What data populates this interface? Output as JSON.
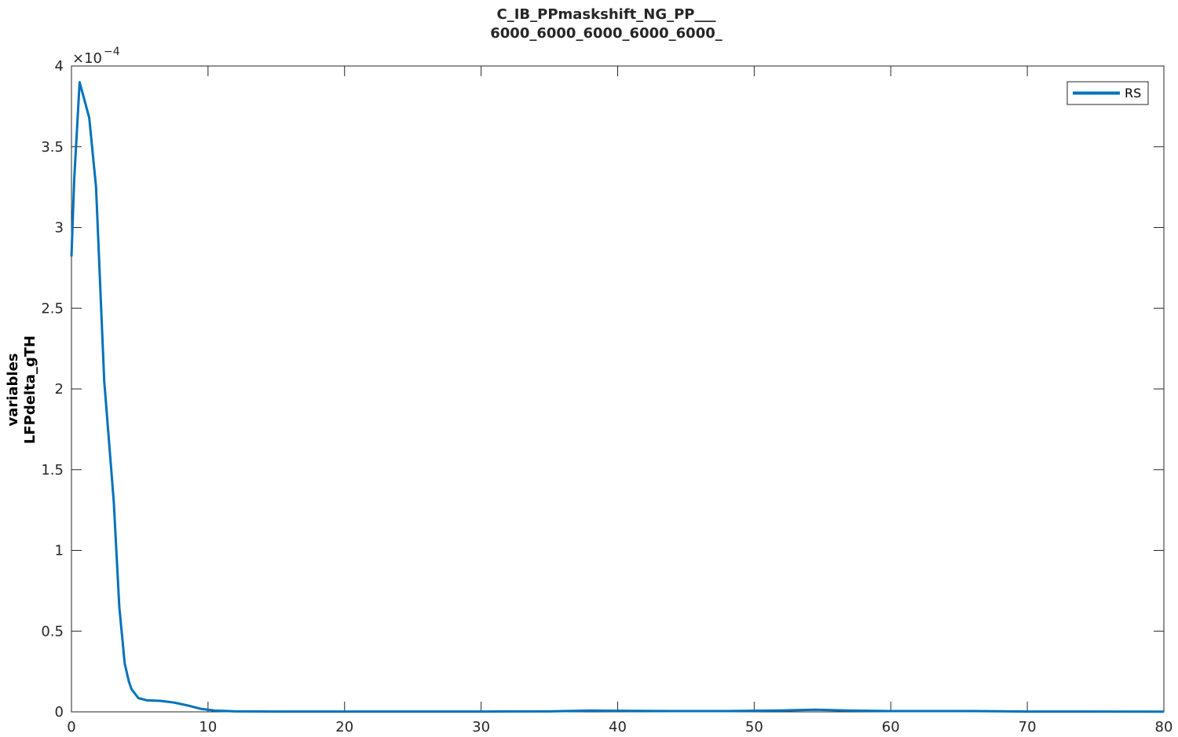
{
  "chart_data": {
    "type": "line",
    "title": [
      "C_IB_PPmaskshift_NG_PP___",
      "6000_6000_6000_6000_6000_"
    ],
    "xlabel": "",
    "ylabel": [
      "variables",
      "LFPdelta_gTH"
    ],
    "xlim": [
      0,
      80
    ],
    "ylim": [
      0,
      0.0004
    ],
    "y_exponent_label": "×10",
    "y_exponent_power": "−4",
    "x_ticks": [
      0,
      10,
      20,
      30,
      40,
      50,
      60,
      70,
      80
    ],
    "x_tick_labels": [
      "0",
      "10",
      "20",
      "30",
      "40",
      "50",
      "60",
      "70",
      "80"
    ],
    "y_ticks": [
      0,
      5e-05,
      0.0001,
      0.00015,
      0.0002,
      0.00025,
      0.0003,
      0.00035,
      0.0004
    ],
    "y_tick_labels": [
      "0",
      "0.5",
      "1",
      "1.5",
      "2",
      "2.5",
      "3",
      "3.5",
      "4"
    ],
    "grid": false,
    "legend_position": "top-right",
    "series": [
      {
        "name": "RS",
        "color": "#0072BD",
        "x": [
          0,
          0.2,
          0.6,
          1.3,
          1.8,
          2.4,
          3.1,
          3.5,
          3.9,
          4.2,
          4.4,
          4.9,
          5.5,
          6.5,
          7.5,
          8.5,
          9.5,
          10.5,
          12,
          15,
          20,
          25,
          30,
          35,
          38,
          41,
          44,
          48,
          52,
          54.5,
          57,
          60,
          63,
          66,
          70,
          75,
          80
        ],
        "y": [
          0.000282,
          0.00033,
          0.00039,
          0.000368,
          0.000325,
          0.000205,
          0.00013,
          6.5e-05,
          3e-05,
          1.9e-05,
          1.4e-05,
          8.5e-06,
          7.2e-06,
          6.8e-06,
          5.8e-06,
          4e-06,
          1.8e-06,
          8e-07,
          3e-07,
          2e-07,
          2e-07,
          2e-07,
          2e-07,
          3e-07,
          8e-07,
          6e-07,
          5e-07,
          5e-07,
          9e-07,
          1.3e-06,
          8e-07,
          5e-07,
          5e-07,
          5e-07,
          2e-07,
          2e-07,
          1e-07
        ]
      }
    ]
  }
}
